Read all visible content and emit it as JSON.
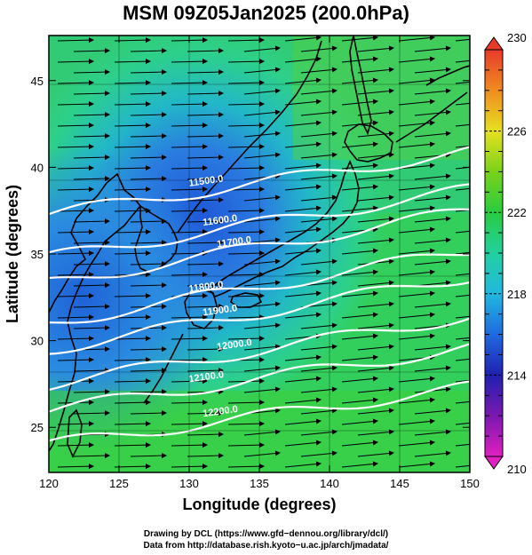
{
  "title": "MSM 09Z05Jan2025 (200.0hPa)",
  "x_axis": {
    "label": "Longitude (degrees)",
    "ticks": [
      "120",
      "125",
      "130",
      "135",
      "140",
      "145",
      "150"
    ],
    "range": [
      120,
      150
    ]
  },
  "y_axis": {
    "label": "Latitude  (degrees)",
    "ticks": [
      "25",
      "30",
      "35",
      "40",
      "45"
    ],
    "range": [
      22.4,
      47.6
    ]
  },
  "colorbar": {
    "ticks": [
      "210",
      "214",
      "218",
      "222",
      "226",
      "230"
    ],
    "range": [
      210,
      230
    ]
  },
  "contours": [
    {
      "label": "11500.0",
      "lat_at_120": 37.3,
      "slope": 0.12
    },
    {
      "label": "11600.0",
      "lat_at_120": 34.8,
      "slope": 0.13
    },
    {
      "label": "11700.0",
      "lat_at_120": 33.3,
      "slope": 0.14
    },
    {
      "label": "11800.0",
      "lat_at_120": 31.0,
      "slope": 0.14
    },
    {
      "label": "11900.0",
      "lat_at_120": 29.5,
      "slope": 0.14
    },
    {
      "label": "12000.0",
      "lat_at_120": 27.5,
      "slope": 0.13
    },
    {
      "label": "12100.0",
      "lat_at_120": 26.0,
      "slope": 0.12
    },
    {
      "label": "12200.0",
      "lat_at_120": 24.0,
      "slope": 0.11
    }
  ],
  "credits": {
    "line1": "Drawing by DCL (https://www.gfd−dennou.org/library/dcl/)",
    "line2": "Data from http://database.rish.kyoto−u.ac.jp/arch/jmadata/"
  },
  "colors": {
    "frame": "#000000",
    "contour": "#ffffff",
    "vector": "#000000"
  }
}
